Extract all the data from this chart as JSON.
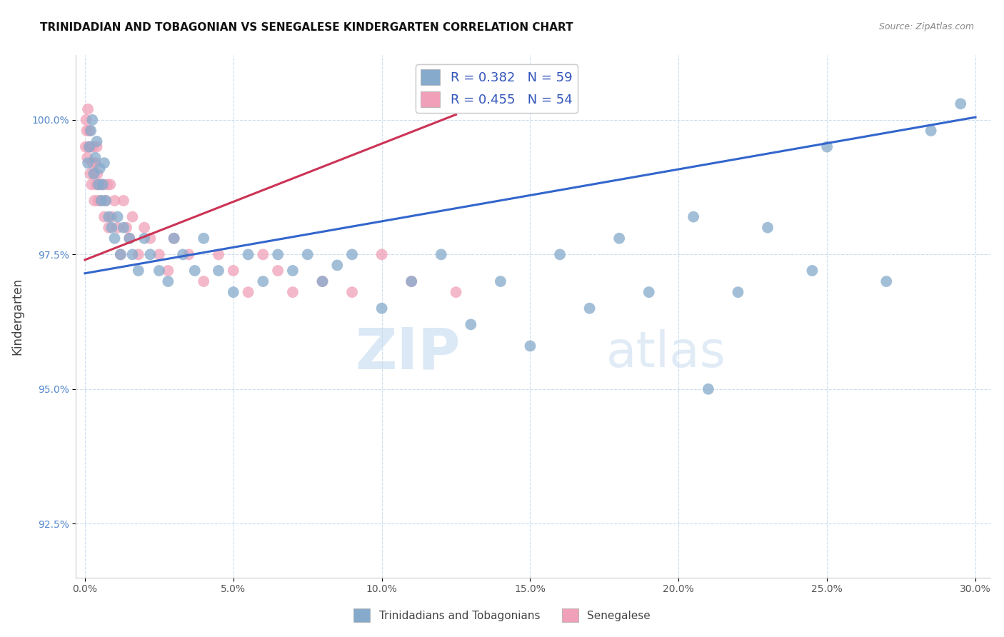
{
  "title": "TRINIDADIAN AND TOBAGONIAN VS SENEGALESE KINDERGARTEN CORRELATION CHART",
  "source": "Source: ZipAtlas.com",
  "xlabel_vals": [
    0.0,
    5.0,
    10.0,
    15.0,
    20.0,
    25.0,
    30.0
  ],
  "ylabel_vals": [
    92.5,
    95.0,
    97.5,
    100.0
  ],
  "xlim": [
    -0.3,
    30.5
  ],
  "ylim": [
    91.5,
    101.2
  ],
  "ylabel": "Kindergarten",
  "legend_blue_label": "R = 0.382   N = 59",
  "legend_pink_label": "R = 0.455   N = 54",
  "legend1_label": "Trinidadians and Tobagonians",
  "legend2_label": "Senegalese",
  "blue_color": "#85AACC",
  "pink_color": "#F0A0B8",
  "blue_line_color": "#3366CC",
  "pink_line_color": "#CC3355",
  "watermark_zip": "ZIP",
  "watermark_atlas": "atlas",
  "blue_dots_x": [
    0.1,
    0.15,
    0.2,
    0.25,
    0.3,
    0.35,
    0.4,
    0.45,
    0.5,
    0.55,
    0.6,
    0.65,
    0.7,
    0.8,
    0.9,
    1.0,
    1.1,
    1.2,
    1.3,
    1.5,
    1.6,
    1.8,
    2.0,
    2.2,
    2.5,
    2.8,
    3.0,
    3.3,
    3.7,
    4.0,
    4.5,
    5.0,
    5.5,
    6.0,
    6.5,
    7.0,
    7.5,
    8.0,
    8.5,
    9.0,
    10.0,
    11.0,
    12.0,
    13.0,
    14.0,
    15.0,
    16.0,
    17.0,
    18.0,
    19.0,
    20.5,
    21.0,
    22.0,
    23.0,
    24.5,
    25.0,
    27.0,
    28.5,
    29.5
  ],
  "blue_dots_y": [
    99.2,
    99.5,
    99.8,
    100.0,
    99.0,
    99.3,
    99.6,
    98.8,
    99.1,
    98.5,
    98.8,
    99.2,
    98.5,
    98.2,
    98.0,
    97.8,
    98.2,
    97.5,
    98.0,
    97.8,
    97.5,
    97.2,
    97.8,
    97.5,
    97.2,
    97.0,
    97.8,
    97.5,
    97.2,
    97.8,
    97.2,
    96.8,
    97.5,
    97.0,
    97.5,
    97.2,
    97.5,
    97.0,
    97.3,
    97.5,
    96.5,
    97.0,
    97.5,
    96.2,
    97.0,
    95.8,
    97.5,
    96.5,
    97.8,
    96.8,
    98.2,
    95.0,
    96.8,
    98.0,
    97.2,
    99.5,
    97.0,
    99.8,
    100.3
  ],
  "pink_dots_x": [
    0.02,
    0.04,
    0.06,
    0.08,
    0.1,
    0.12,
    0.15,
    0.18,
    0.2,
    0.22,
    0.25,
    0.28,
    0.3,
    0.32,
    0.35,
    0.38,
    0.4,
    0.42,
    0.45,
    0.5,
    0.55,
    0.6,
    0.65,
    0.7,
    0.75,
    0.8,
    0.85,
    0.9,
    1.0,
    1.1,
    1.2,
    1.3,
    1.4,
    1.5,
    1.6,
    1.8,
    2.0,
    2.2,
    2.5,
    2.8,
    3.0,
    3.5,
    4.0,
    4.5,
    5.0,
    5.5,
    6.0,
    6.5,
    7.0,
    8.0,
    9.0,
    10.0,
    11.0,
    12.5
  ],
  "pink_dots_y": [
    99.5,
    100.0,
    99.8,
    99.3,
    100.2,
    99.5,
    99.8,
    99.0,
    99.5,
    98.8,
    99.2,
    99.5,
    99.0,
    98.5,
    99.2,
    98.8,
    99.5,
    99.0,
    98.5,
    98.8,
    98.5,
    98.8,
    98.2,
    98.5,
    98.8,
    98.0,
    98.8,
    98.2,
    98.5,
    98.0,
    97.5,
    98.5,
    98.0,
    97.8,
    98.2,
    97.5,
    98.0,
    97.8,
    97.5,
    97.2,
    97.8,
    97.5,
    97.0,
    97.5,
    97.2,
    96.8,
    97.5,
    97.2,
    96.8,
    97.0,
    96.8,
    97.5,
    97.0,
    96.8
  ],
  "blue_trendline_x": [
    0.0,
    30.0
  ],
  "blue_trendline_y": [
    97.15,
    100.05
  ],
  "pink_trendline_x": [
    0.0,
    12.5
  ],
  "pink_trendline_y": [
    97.4,
    100.1
  ]
}
